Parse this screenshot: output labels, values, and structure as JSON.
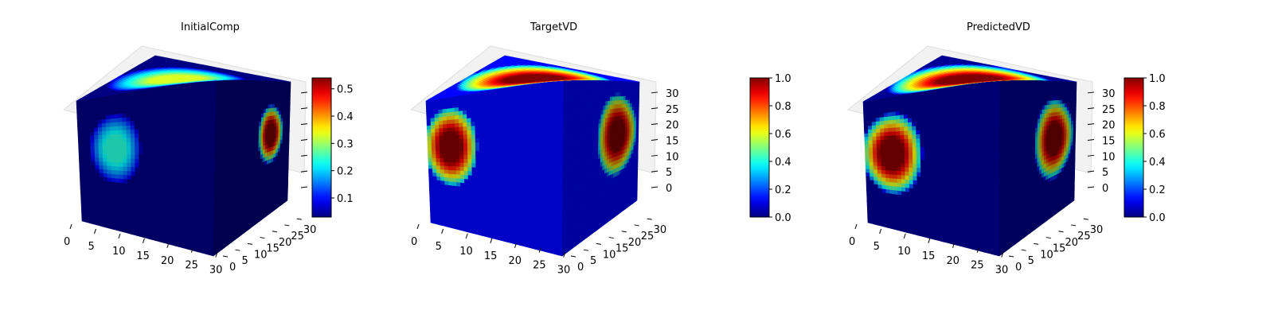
{
  "chart_data": [
    {
      "type": "heatmap",
      "title": "InitialComp",
      "xlim": [
        0,
        32
      ],
      "ylim": [
        0,
        32
      ],
      "zlim": [
        0,
        32
      ],
      "x_ticks": [
        "0",
        "5",
        "10",
        "15",
        "20",
        "25",
        "30"
      ],
      "y_ticks": [
        "0",
        "5",
        "10",
        "15",
        "20",
        "25",
        "30"
      ],
      "z_ticks": [
        "0",
        "5",
        "10",
        "15",
        "20",
        "25",
        "30"
      ],
      "show_z_tick_labels": false,
      "colormap": "jet",
      "colorbar": {
        "min": 0.03,
        "max": 0.54,
        "ticks": [
          "0.1",
          "0.2",
          "0.3",
          "0.4",
          "0.5"
        ],
        "tick_values": [
          0.1,
          0.2,
          0.3,
          0.4,
          0.5
        ]
      },
      "background_value": 0.03,
      "blobs": [
        {
          "face": "top",
          "center": [
            0.45,
            0.5
          ],
          "radius": [
            0.45,
            0.4
          ],
          "value": 0.33
        },
        {
          "face": "front",
          "center": [
            0.27,
            0.4
          ],
          "radius": [
            0.19,
            0.26
          ],
          "value": 0.24
        },
        {
          "face": "right",
          "center": [
            0.75,
            0.4
          ],
          "radius": [
            0.17,
            0.22
          ],
          "value": 0.54
        }
      ]
    },
    {
      "type": "heatmap",
      "title": "TargetVD",
      "xlim": [
        0,
        32
      ],
      "ylim": [
        0,
        32
      ],
      "zlim": [
        0,
        32
      ],
      "x_ticks": [
        "0",
        "5",
        "10",
        "15",
        "20",
        "25",
        "30"
      ],
      "y_ticks": [
        "0",
        "5",
        "10",
        "15",
        "20",
        "25",
        "30"
      ],
      "z_ticks": [
        "0",
        "5",
        "10",
        "15",
        "20",
        "25",
        "30"
      ],
      "show_z_tick_labels": true,
      "colormap": "jet",
      "colorbar": {
        "min": 0.0,
        "max": 1.0,
        "ticks": [
          "0.0",
          "0.2",
          "0.4",
          "0.6",
          "0.8",
          "1.0"
        ],
        "tick_values": [
          0.0,
          0.2,
          0.4,
          0.6,
          0.8,
          1.0
        ]
      },
      "background_value": 0.13,
      "blobs": [
        {
          "face": "top",
          "center": [
            0.5,
            0.52
          ],
          "radius": [
            0.5,
            0.46
          ],
          "value": 1.0
        },
        {
          "face": "front",
          "center": [
            0.17,
            0.38
          ],
          "radius": [
            0.2,
            0.3
          ],
          "value": 1.0
        },
        {
          "face": "right",
          "center": [
            0.72,
            0.4
          ],
          "radius": [
            0.26,
            0.3
          ],
          "value": 1.0
        }
      ]
    },
    {
      "type": "heatmap",
      "title": "PredictedVD",
      "xlim": [
        0,
        32
      ],
      "ylim": [
        0,
        32
      ],
      "zlim": [
        0,
        32
      ],
      "x_ticks": [
        "0",
        "5",
        "10",
        "15",
        "20",
        "25",
        "30"
      ],
      "y_ticks": [
        "0",
        "5",
        "10",
        "15",
        "20",
        "25",
        "30"
      ],
      "z_ticks": [
        "0",
        "5",
        "10",
        "15",
        "20",
        "25",
        "30"
      ],
      "show_z_tick_labels": true,
      "colormap": "jet",
      "colorbar": {
        "min": 0.0,
        "max": 1.0,
        "ticks": [
          "0.0",
          "0.2",
          "0.4",
          "0.6",
          "0.8",
          "1.0"
        ],
        "tick_values": [
          0.0,
          0.2,
          0.4,
          0.6,
          0.8,
          1.0
        ]
      },
      "background_value": 0.02,
      "blobs": [
        {
          "face": "top",
          "center": [
            0.5,
            0.5
          ],
          "radius": [
            0.53,
            0.5
          ],
          "value": 1.0
        },
        {
          "face": "front",
          "center": [
            0.2,
            0.43
          ],
          "radius": [
            0.23,
            0.31
          ],
          "value": 1.0
        },
        {
          "face": "right",
          "center": [
            0.72,
            0.43
          ],
          "radius": [
            0.26,
            0.3
          ],
          "value": 1.0
        }
      ]
    }
  ]
}
